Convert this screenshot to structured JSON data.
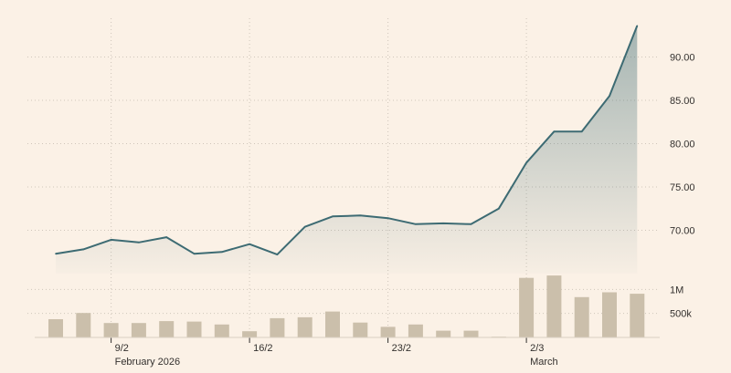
{
  "chart_data": {
    "type": "line",
    "x": [
      "2026-02-05",
      "2026-02-06",
      "2026-02-09",
      "2026-02-10",
      "2026-02-11",
      "2026-02-12",
      "2026-02-13",
      "2026-02-16",
      "2026-02-17",
      "2026-02-18",
      "2026-02-19",
      "2026-02-20",
      "2026-02-23",
      "2026-02-24",
      "2026-02-25",
      "2026-02-26",
      "2026-02-27",
      "2026-03-02",
      "2026-03-03",
      "2026-03-04",
      "2026-03-05",
      "2026-03-06"
    ],
    "price": {
      "values": [
        67.3,
        67.8,
        68.9,
        68.6,
        69.2,
        67.3,
        67.5,
        68.4,
        67.2,
        70.4,
        71.6,
        71.7,
        71.4,
        70.7,
        70.8,
        70.7,
        72.5,
        77.8,
        81.4,
        81.4,
        85.5,
        93.6
      ],
      "ylim": [
        65,
        95
      ],
      "ticks": [
        "70.00",
        "75.00",
        "80.00",
        "85.00",
        "90.00"
      ],
      "tick_values": [
        70,
        75,
        80,
        85,
        90
      ],
      "line_color": "#3d6b73"
    },
    "volume": {
      "values": [
        380000,
        510000,
        300000,
        300000,
        340000,
        330000,
        270000,
        130000,
        400000,
        420000,
        540000,
        310000,
        220000,
        270000,
        140000,
        140000,
        15000,
        1240000,
        1290000,
        840000,
        940000,
        910000
      ],
      "ylim": [
        0,
        1330000
      ],
      "ticks": [
        "500k",
        "1M"
      ],
      "tick_values": [
        500000,
        1000000
      ],
      "bar_color": "#cbbfab"
    },
    "x_ticks": [
      {
        "date": "2026-02-09",
        "label": "9/2",
        "sublabel": "February 2026"
      },
      {
        "date": "2026-02-16",
        "label": "16/2",
        "sublabel": ""
      },
      {
        "date": "2026-02-23",
        "label": "23/2",
        "sublabel": ""
      },
      {
        "date": "2026-03-02",
        "label": "2/3",
        "sublabel": "March"
      }
    ],
    "grid": true
  }
}
